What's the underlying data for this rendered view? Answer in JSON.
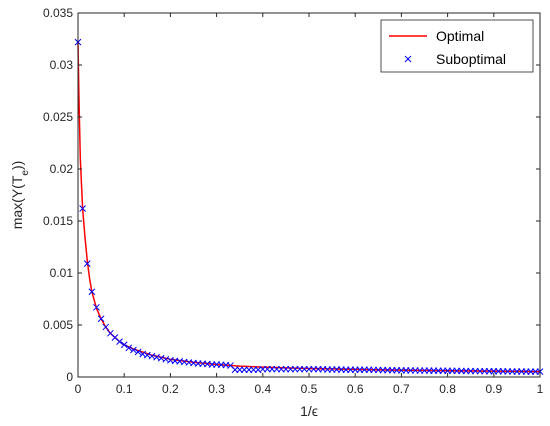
{
  "chart_data": {
    "type": "line",
    "title": "",
    "xlabel": "1/ϵ",
    "ylabel": "max(Y(T_e))",
    "ylabel_main": "max(Y(T",
    "ylabel_sub": "e",
    "ylabel_tail": "))",
    "xlim": [
      0,
      1
    ],
    "ylim": [
      0,
      0.035
    ],
    "xticks": [
      0,
      0.1,
      0.2,
      0.3,
      0.4,
      0.5,
      0.6,
      0.7,
      0.8,
      0.9,
      1
    ],
    "xtick_labels": [
      "0",
      "0.1",
      "0.2",
      "0.3",
      "0.4",
      "0.5",
      "0.6",
      "0.7",
      "0.8",
      "0.9",
      "1"
    ],
    "yticks": [
      0,
      0.005,
      0.01,
      0.015,
      0.02,
      0.025,
      0.03,
      0.035
    ],
    "ytick_labels": [
      "0",
      "0.005",
      "0.01",
      "0.015",
      "0.02",
      "0.025",
      "0.03",
      "0.035"
    ],
    "grid": false,
    "legend_position": "top-right",
    "series": [
      {
        "name": "Optimal",
        "style": "line",
        "color": "#ff0000",
        "x": [
          0,
          0.002,
          0.005,
          0.01,
          0.015,
          0.02,
          0.025,
          0.03,
          0.04,
          0.05,
          0.06,
          0.07,
          0.08,
          0.09,
          0.1,
          0.12,
          0.14,
          0.16,
          0.18,
          0.2,
          0.25,
          0.3,
          0.35,
          0.4,
          0.45,
          0.5,
          0.6,
          0.7,
          0.8,
          0.9,
          1.0
        ],
        "y": [
          0.0322,
          0.027,
          0.021,
          0.0162,
          0.0135,
          0.0112,
          0.0095,
          0.0082,
          0.0066,
          0.0056,
          0.0048,
          0.0042,
          0.0038,
          0.0034,
          0.0031,
          0.0027,
          0.0024,
          0.0021,
          0.0019,
          0.0017,
          0.00142,
          0.0012,
          0.00105,
          0.00095,
          0.00088,
          0.00082,
          0.00073,
          0.00066,
          0.0006,
          0.00056,
          0.00052
        ]
      },
      {
        "name": "Suboptimal",
        "style": "marker",
        "marker": "x",
        "color": "#0000ff",
        "x": [
          0,
          0.01,
          0.02,
          0.03,
          0.04,
          0.05,
          0.06,
          0.07,
          0.08,
          0.09,
          0.1,
          0.11,
          0.12,
          0.13,
          0.14,
          0.15,
          0.16,
          0.17,
          0.18,
          0.19,
          0.2,
          0.21,
          0.22,
          0.23,
          0.24,
          0.25,
          0.26,
          0.27,
          0.28,
          0.29,
          0.3,
          0.31,
          0.32,
          0.33,
          0.34,
          0.35,
          0.36,
          0.37,
          0.38,
          0.39,
          0.4,
          0.41,
          0.42,
          0.43,
          0.44,
          0.45,
          0.46,
          0.47,
          0.48,
          0.49,
          0.5,
          0.51,
          0.52,
          0.53,
          0.54,
          0.55,
          0.56,
          0.57,
          0.58,
          0.59,
          0.6,
          0.61,
          0.62,
          0.63,
          0.64,
          0.65,
          0.66,
          0.67,
          0.68,
          0.69,
          0.7,
          0.71,
          0.72,
          0.73,
          0.74,
          0.75,
          0.76,
          0.77,
          0.78,
          0.79,
          0.8,
          0.81,
          0.82,
          0.83,
          0.84,
          0.85,
          0.86,
          0.87,
          0.88,
          0.89,
          0.9,
          0.91,
          0.92,
          0.93,
          0.94,
          0.95,
          0.96,
          0.97,
          0.98,
          0.99,
          1.0
        ],
        "y": [
          0.0322,
          0.0162,
          0.0109,
          0.0082,
          0.0067,
          0.0056,
          0.0048,
          0.0042,
          0.0038,
          0.0034,
          0.0031,
          0.0028,
          0.0026,
          0.0024,
          0.0022,
          0.0021,
          0.002,
          0.0019,
          0.0018,
          0.0017,
          0.0016,
          0.00155,
          0.0015,
          0.00145,
          0.0014,
          0.00135,
          0.0013,
          0.00128,
          0.00125,
          0.0012,
          0.0012,
          0.00118,
          0.00115,
          0.0011,
          0.0007,
          0.0007,
          0.0007,
          0.0007,
          0.0007,
          0.0007,
          0.00075,
          0.00075,
          0.00075,
          0.00075,
          0.00075,
          0.00075,
          0.00075,
          0.00075,
          0.00075,
          0.00075,
          0.00075,
          0.00075,
          0.00075,
          0.00075,
          0.00072,
          0.00072,
          0.00072,
          0.00072,
          0.0007,
          0.0007,
          0.0007,
          0.0007,
          0.0007,
          0.0007,
          0.00068,
          0.00068,
          0.00066,
          0.00066,
          0.00065,
          0.00065,
          0.00064,
          0.00064,
          0.00063,
          0.00063,
          0.00062,
          0.00062,
          0.00061,
          0.00061,
          0.0006,
          0.0006,
          0.0006,
          0.00059,
          0.00059,
          0.00058,
          0.00058,
          0.00057,
          0.00057,
          0.00056,
          0.00056,
          0.00055,
          0.00055,
          0.00055,
          0.00054,
          0.00054,
          0.00053,
          0.00053,
          0.00053,
          0.00052,
          0.00052,
          0.00052,
          0.00052
        ]
      }
    ]
  }
}
